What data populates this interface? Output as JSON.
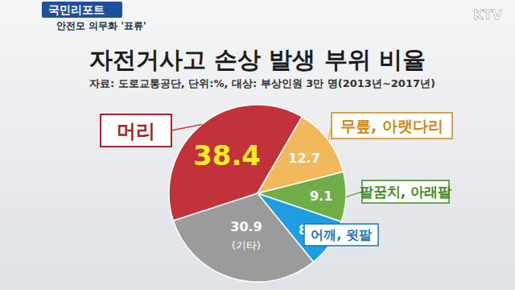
{
  "chart_data": {
    "type": "pie",
    "title": "자전거사고 손상 발생 부위 비율",
    "subtitle": "자료: 도로교통공단, 단위:%, 대상: 부상인원 3만 명(2013년~2017년)",
    "categories": [
      "머리",
      "무릎, 아랫다리",
      "팔꿈치, 아래팔",
      "어깨, 윗팔",
      "(기타)"
    ],
    "values": [
      38.4,
      12.7,
      9.1,
      8.9,
      30.9
    ],
    "colors": [
      "#c1323b",
      "#f1b95c",
      "#6fae46",
      "#1e9de2",
      "#9b9b9b"
    ],
    "data_labels": true,
    "annotations": [
      "국민리포트",
      "안전모 의무화 '표류'",
      "KTV"
    ]
  }
}
